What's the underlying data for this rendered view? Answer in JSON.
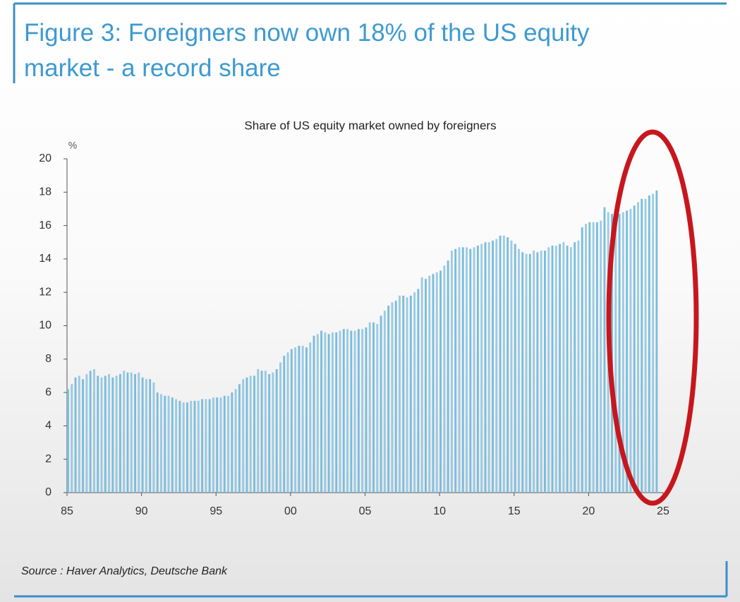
{
  "title": "Figure 3: Foreigners now own 18% of the US equity market - a record share",
  "source": "Source : Haver Analytics, Deutsche Bank",
  "chart_data": {
    "type": "bar",
    "title": "Share of US equity market owned by foreigners",
    "y_unit": "%",
    "color": "#7cbcdc",
    "xlim": [
      1985,
      2025
    ],
    "xticks": [
      {
        "value": 1985,
        "label": "85"
      },
      {
        "value": 1990,
        "label": "90"
      },
      {
        "value": 1995,
        "label": "95"
      },
      {
        "value": 2000,
        "label": "00"
      },
      {
        "value": 2005,
        "label": "05"
      },
      {
        "value": 2010,
        "label": "10"
      },
      {
        "value": 2015,
        "label": "15"
      },
      {
        "value": 2020,
        "label": "20"
      },
      {
        "value": 2025,
        "label": "25"
      }
    ],
    "ylim": [
      0,
      20
    ],
    "yticks": [
      0,
      2,
      4,
      6,
      8,
      10,
      12,
      14,
      16,
      18,
      20
    ],
    "grid": false,
    "x": [
      1985,
      1985.25,
      1985.5,
      1985.75,
      1986,
      1986.25,
      1986.5,
      1986.75,
      1987,
      1987.25,
      1987.5,
      1987.75,
      1988,
      1988.25,
      1988.5,
      1988.75,
      1989,
      1989.25,
      1989.5,
      1989.75,
      1990,
      1990.25,
      1990.5,
      1990.75,
      1991,
      1991.25,
      1991.5,
      1991.75,
      1992,
      1992.25,
      1992.5,
      1992.75,
      1993,
      1993.25,
      1993.5,
      1993.75,
      1994,
      1994.25,
      1994.5,
      1994.75,
      1995,
      1995.25,
      1995.5,
      1995.75,
      1996,
      1996.25,
      1996.5,
      1996.75,
      1997,
      1997.25,
      1997.5,
      1997.75,
      1998,
      1998.25,
      1998.5,
      1998.75,
      1999,
      1999.25,
      1999.5,
      1999.75,
      2000,
      2000.25,
      2000.5,
      2000.75,
      2001,
      2001.25,
      2001.5,
      2001.75,
      2002,
      2002.25,
      2002.5,
      2002.75,
      2003,
      2003.25,
      2003.5,
      2003.75,
      2004,
      2004.25,
      2004.5,
      2004.75,
      2005,
      2005.25,
      2005.5,
      2005.75,
      2006,
      2006.25,
      2006.5,
      2006.75,
      2007,
      2007.25,
      2007.5,
      2007.75,
      2008,
      2008.25,
      2008.5,
      2008.75,
      2009,
      2009.25,
      2009.5,
      2009.75,
      2010,
      2010.25,
      2010.5,
      2010.75,
      2011,
      2011.25,
      2011.5,
      2011.75,
      2012,
      2012.25,
      2012.5,
      2012.75,
      2013,
      2013.25,
      2013.5,
      2013.75,
      2014,
      2014.25,
      2014.5,
      2014.75,
      2015,
      2015.25,
      2015.5,
      2015.75,
      2016,
      2016.25,
      2016.5,
      2016.75,
      2017,
      2017.25,
      2017.5,
      2017.75,
      2018,
      2018.25,
      2018.5,
      2018.75,
      2019,
      2019.25,
      2019.5,
      2019.75,
      2020,
      2020.25,
      2020.5,
      2020.75,
      2021,
      2021.25,
      2021.5,
      2021.75,
      2022,
      2022.25,
      2022.5,
      2022.75,
      2023,
      2023.25,
      2023.5,
      2023.75,
      2024,
      2024.25,
      2024.5
    ],
    "values": [
      6.2,
      6.5,
      6.9,
      7.0,
      6.8,
      7.1,
      7.3,
      7.4,
      7.0,
      6.9,
      7.0,
      7.1,
      6.9,
      7.0,
      7.1,
      7.3,
      7.2,
      7.2,
      7.1,
      7.2,
      6.9,
      6.8,
      6.8,
      6.6,
      6.0,
      5.9,
      5.8,
      5.8,
      5.7,
      5.6,
      5.5,
      5.4,
      5.4,
      5.5,
      5.5,
      5.5,
      5.6,
      5.6,
      5.6,
      5.7,
      5.7,
      5.7,
      5.8,
      5.8,
      6.0,
      6.2,
      6.5,
      6.8,
      6.9,
      7.0,
      7.0,
      7.4,
      7.3,
      7.3,
      7.1,
      7.2,
      7.4,
      7.8,
      8.2,
      8.4,
      8.6,
      8.7,
      8.8,
      8.8,
      8.7,
      9.0,
      9.4,
      9.5,
      9.7,
      9.6,
      9.5,
      9.6,
      9.6,
      9.7,
      9.8,
      9.8,
      9.7,
      9.7,
      9.8,
      9.8,
      9.9,
      10.2,
      10.2,
      10.1,
      10.6,
      10.9,
      11.2,
      11.4,
      11.5,
      11.8,
      11.8,
      11.7,
      11.8,
      12.0,
      12.2,
      12.9,
      12.8,
      13.0,
      13.1,
      13.2,
      13.3,
      13.6,
      13.9,
      14.5,
      14.6,
      14.7,
      14.7,
      14.7,
      14.6,
      14.7,
      14.8,
      14.9,
      15.0,
      15.0,
      15.1,
      15.2,
      15.4,
      15.4,
      15.3,
      15.1,
      14.9,
      14.6,
      14.4,
      14.3,
      14.3,
      14.5,
      14.4,
      14.5,
      14.5,
      14.7,
      14.8,
      14.8,
      14.9,
      15.0,
      14.8,
      14.7,
      15.0,
      15.1,
      15.9,
      16.1,
      16.2,
      16.2,
      16.2,
      16.3,
      17.1,
      16.8,
      16.7,
      16.8,
      16.7,
      16.8,
      16.9,
      17.0,
      17.2,
      17.4,
      17.6,
      17.6,
      17.8,
      17.9,
      18.1
    ]
  }
}
